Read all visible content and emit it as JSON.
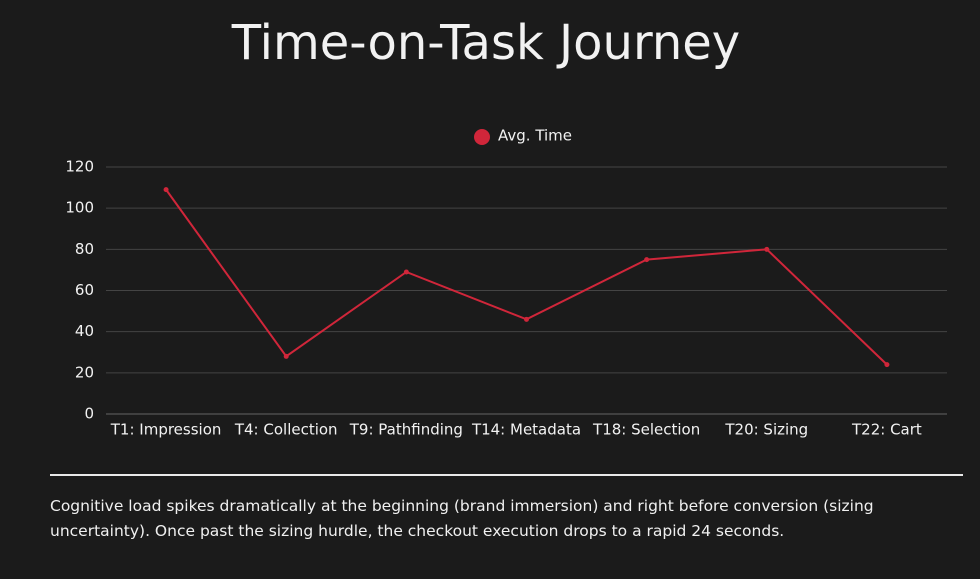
{
  "chart_data": {
    "type": "line",
    "title": "Time-on-Task Journey",
    "categories": [
      "T1: Impression",
      "T4: Collection",
      "T9: Pathfinding",
      "T14: Metadata",
      "T18: Selection",
      "T20: Sizing",
      "T22: Cart"
    ],
    "series": [
      {
        "name": "Avg. Time",
        "color": "#d0263a",
        "values": [
          109,
          28,
          69,
          46,
          75,
          80,
          24
        ]
      }
    ],
    "ylim": [
      0,
      120
    ],
    "yticks": [
      0,
      20,
      40,
      60,
      80,
      100,
      120
    ],
    "grid": true,
    "legend": "top",
    "caption": "Cognitive load spikes dramatically at the beginning (brand immersion) and right before conversion (sizing uncertainty). Once past the sizing hurdle, the checkout execution drops to a rapid 24 seconds."
  }
}
